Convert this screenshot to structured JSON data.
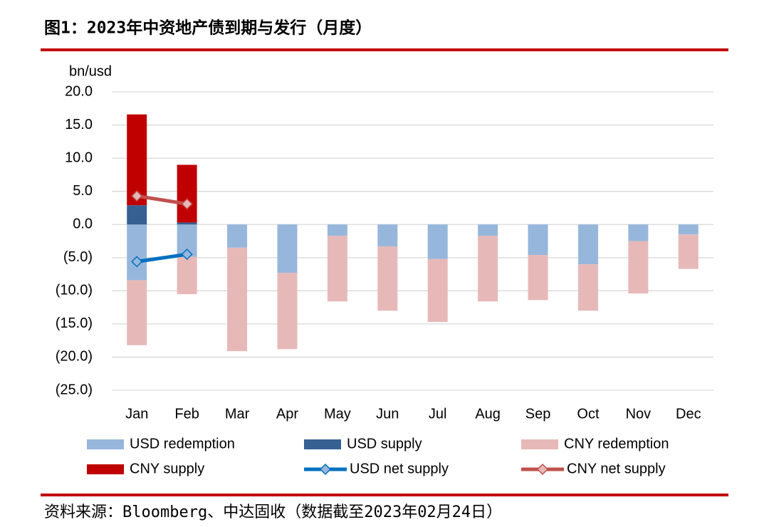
{
  "chart_data": {
    "type": "bar",
    "title": "图1：2023年中资地产债到期与发行（月度）",
    "source": "资料来源：Bloomberg、中达固收（数据截至2023年02月24日）",
    "y_label": "bn/usd",
    "categories": [
      "Jan",
      "Feb",
      "Mar",
      "Apr",
      "May",
      "Jun",
      "Jul",
      "Aug",
      "Sep",
      "Oct",
      "Nov",
      "Dec"
    ],
    "series": [
      {
        "name": "USD redemption",
        "type": "bar",
        "color": "#97b6dc",
        "values": [
          -8.4,
          -4.9,
          -3.5,
          -7.3,
          -1.7,
          -3.3,
          -5.2,
          -1.7,
          -4.6,
          -6.0,
          -2.5,
          -1.5
        ]
      },
      {
        "name": "USD supply",
        "type": "bar",
        "color": "#366092",
        "values": [
          2.9,
          0.3,
          0,
          0,
          0,
          0,
          0,
          0,
          0,
          0,
          0,
          0
        ]
      },
      {
        "name": "CNY redemption",
        "type": "bar",
        "color": "#e6b9b8",
        "values": [
          -9.8,
          -5.6,
          -15.6,
          -11.5,
          -9.9,
          -9.7,
          -9.5,
          -9.9,
          -6.8,
          -7.0,
          -7.9,
          -5.2
        ]
      },
      {
        "name": "CNY supply",
        "type": "bar",
        "color": "#c00000",
        "values": [
          13.7,
          8.7,
          0,
          0,
          0,
          0,
          0,
          0,
          0,
          0,
          0,
          0
        ]
      },
      {
        "name": "USD net supply",
        "type": "line",
        "color": "#0070c0",
        "values": [
          -5.6,
          -4.5,
          null,
          null,
          null,
          null,
          null,
          null,
          null,
          null,
          null,
          null
        ]
      },
      {
        "name": "CNY net supply",
        "type": "line",
        "color": "#c0504d",
        "values": [
          4.3,
          3.1,
          null,
          null,
          null,
          null,
          null,
          null,
          null,
          null,
          null,
          null
        ]
      }
    ],
    "ylim": [
      -25,
      20
    ],
    "yticks": [
      {
        "value": 20,
        "label": "20.0"
      },
      {
        "value": 15,
        "label": "15.0"
      },
      {
        "value": 10,
        "label": "10.0"
      },
      {
        "value": 5,
        "label": "5.0"
      },
      {
        "value": 0,
        "label": "0.0"
      },
      {
        "value": -5,
        "label": "(5.0)"
      },
      {
        "value": -10,
        "label": "(10.0)"
      },
      {
        "value": -15,
        "label": "(15.0)"
      },
      {
        "value": -20,
        "label": "(20.0)"
      },
      {
        "value": -25,
        "label": "(25.0)"
      }
    ],
    "negative_label_color": "#c00000",
    "grid": true
  }
}
